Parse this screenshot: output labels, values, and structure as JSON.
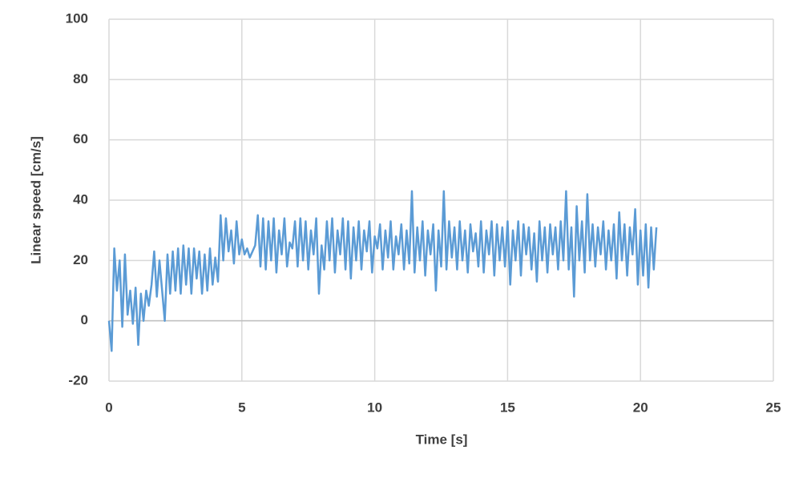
{
  "chart_data": {
    "type": "line",
    "xlabel": "Time [s]",
    "ylabel": "Linear speed [cm/s]",
    "xlim": [
      0,
      25
    ],
    "xticks": [
      0,
      5,
      10,
      15,
      20,
      25
    ],
    "ylim": [
      -20,
      100
    ],
    "yticks": [
      -20,
      0,
      20,
      40,
      60,
      80,
      100
    ],
    "grid": true,
    "x": [
      0,
      0.1,
      0.2,
      0.3,
      0.4,
      0.5,
      0.6,
      0.7,
      0.8,
      0.9,
      1,
      1.1,
      1.2,
      1.3,
      1.4,
      1.5,
      1.6,
      1.7,
      1.8,
      1.9,
      2,
      2.1,
      2.2,
      2.3,
      2.4,
      2.5,
      2.6,
      2.7,
      2.8,
      2.9,
      3,
      3.1,
      3.2,
      3.3,
      3.4,
      3.5,
      3.6,
      3.7,
      3.8,
      3.9,
      4,
      4.1,
      4.2,
      4.3,
      4.4,
      4.5,
      4.6,
      4.7,
      4.8,
      4.9,
      5,
      5.1,
      5.2,
      5.3,
      5.4,
      5.5,
      5.6,
      5.7,
      5.8,
      5.9,
      6,
      6.1,
      6.2,
      6.3,
      6.4,
      6.5,
      6.6,
      6.7,
      6.8,
      6.9,
      7,
      7.1,
      7.2,
      7.3,
      7.4,
      7.5,
      7.6,
      7.7,
      7.8,
      7.9,
      8,
      8.1,
      8.2,
      8.3,
      8.4,
      8.5,
      8.6,
      8.7,
      8.8,
      8.9,
      9,
      9.1,
      9.2,
      9.3,
      9.4,
      9.5,
      9.6,
      9.7,
      9.8,
      9.9,
      10,
      10.1,
      10.2,
      10.3,
      10.4,
      10.5,
      10.6,
      10.7,
      10.8,
      10.9,
      11,
      11.1,
      11.2,
      11.3,
      11.4,
      11.5,
      11.6,
      11.7,
      11.8,
      11.9,
      12,
      12.1,
      12.2,
      12.3,
      12.4,
      12.5,
      12.6,
      12.7,
      12.8,
      12.9,
      13,
      13.1,
      13.2,
      13.3,
      13.4,
      13.5,
      13.6,
      13.7,
      13.8,
      13.9,
      14,
      14.1,
      14.2,
      14.3,
      14.4,
      14.5,
      14.6,
      14.7,
      14.8,
      14.9,
      15,
      15.1,
      15.2,
      15.3,
      15.4,
      15.5,
      15.6,
      15.7,
      15.8,
      15.9,
      16,
      16.1,
      16.2,
      16.3,
      16.4,
      16.5,
      16.6,
      16.7,
      16.8,
      16.9,
      17,
      17.1,
      17.2,
      17.3,
      17.4,
      17.5,
      17.6,
      17.7,
      17.8,
      17.9,
      18,
      18.1,
      18.2,
      18.3,
      18.4,
      18.5,
      18.6,
      18.7,
      18.8,
      18.9,
      19,
      19.1,
      19.2,
      19.3,
      19.4,
      19.5,
      19.6,
      19.7,
      19.8,
      19.9,
      20,
      20.1,
      20.2,
      20.3,
      20.4,
      20.5,
      20.6
    ],
    "series": [
      {
        "name": "Linear speed",
        "color": "#5b9bd5",
        "values": [
          0,
          -10,
          24,
          10,
          20,
          -2,
          22,
          2,
          10,
          -1,
          11,
          -8,
          9,
          0,
          10,
          5,
          12,
          23,
          8,
          20,
          10,
          0,
          22,
          9,
          23,
          10,
          24,
          9,
          25,
          12,
          24,
          9,
          24,
          14,
          23,
          9,
          22,
          10,
          24,
          12,
          21,
          13,
          35,
          20,
          34,
          23,
          30,
          19,
          33,
          22,
          27,
          22,
          24,
          21,
          23,
          25,
          35,
          18,
          34,
          17,
          33,
          20,
          34,
          16,
          30,
          22,
          34,
          18,
          26,
          24,
          33,
          18,
          34,
          20,
          33,
          17,
          30,
          22,
          34,
          9,
          25,
          17,
          33,
          20,
          34,
          16,
          30,
          22,
          34,
          17,
          33,
          14,
          31,
          20,
          33,
          17,
          30,
          23,
          33,
          16,
          28,
          24,
          32,
          17,
          30,
          21,
          33,
          17,
          28,
          22,
          32,
          17,
          30,
          19,
          43,
          16,
          31,
          20,
          33,
          15,
          30,
          22,
          32,
          10,
          30,
          18,
          43,
          17,
          33,
          21,
          31,
          17,
          33,
          20,
          30,
          16,
          32,
          23,
          29,
          18,
          33,
          16,
          30,
          22,
          33,
          15,
          32,
          20,
          31,
          18,
          33,
          12,
          30,
          20,
          33,
          15,
          32,
          22,
          31,
          17,
          29,
          13,
          33,
          20,
          31,
          16,
          32,
          22,
          31,
          17,
          33,
          20,
          43,
          17,
          31,
          8,
          38,
          20,
          33,
          16,
          42,
          20,
          32,
          18,
          31,
          22,
          33,
          17,
          30,
          20,
          32,
          14,
          36,
          20,
          32,
          15,
          31,
          22,
          37,
          12,
          30,
          15,
          32,
          11,
          31,
          17,
          31
        ]
      }
    ]
  }
}
